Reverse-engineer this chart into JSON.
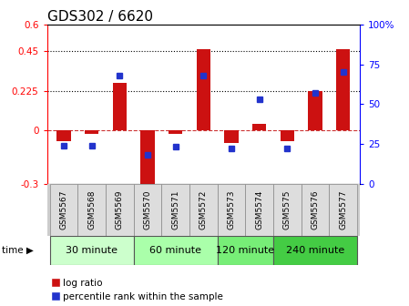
{
  "title": "GDS302 / 6620",
  "samples": [
    "GSM5567",
    "GSM5568",
    "GSM5569",
    "GSM5570",
    "GSM5571",
    "GSM5572",
    "GSM5573",
    "GSM5574",
    "GSM5575",
    "GSM5576",
    "GSM5577"
  ],
  "log_ratio": [
    -0.06,
    -0.02,
    0.27,
    -0.35,
    -0.02,
    0.46,
    -0.07,
    0.04,
    -0.06,
    0.225,
    0.46
  ],
  "percentile": [
    24,
    24,
    68,
    18,
    23,
    68,
    22,
    53,
    22,
    57,
    70
  ],
  "groups": [
    {
      "label": "30 minute",
      "start": 0,
      "end": 3,
      "color": "#ccffcc"
    },
    {
      "label": "60 minute",
      "start": 3,
      "end": 6,
      "color": "#aaffaa"
    },
    {
      "label": "120 minute",
      "start": 6,
      "end": 8,
      "color": "#77ee77"
    },
    {
      "label": "240 minute",
      "start": 8,
      "end": 11,
      "color": "#44cc44"
    }
  ],
  "ylim_left": [
    -0.3,
    0.6
  ],
  "ylim_right": [
    0,
    100
  ],
  "yticks_left": [
    -0.3,
    0,
    0.225,
    0.45,
    0.6
  ],
  "yticks_right": [
    0,
    25,
    50,
    75,
    100
  ],
  "dotted_lines": [
    0.225,
    0.45
  ],
  "bar_color": "#cc1111",
  "dot_color": "#2233cc",
  "bar_width": 0.5,
  "zero_line_color": "#cc3333",
  "title_fontsize": 11,
  "tick_fontsize": 7.5,
  "sample_fontsize": 6.5,
  "group_fontsize": 8,
  "legend_fontsize": 7.5
}
